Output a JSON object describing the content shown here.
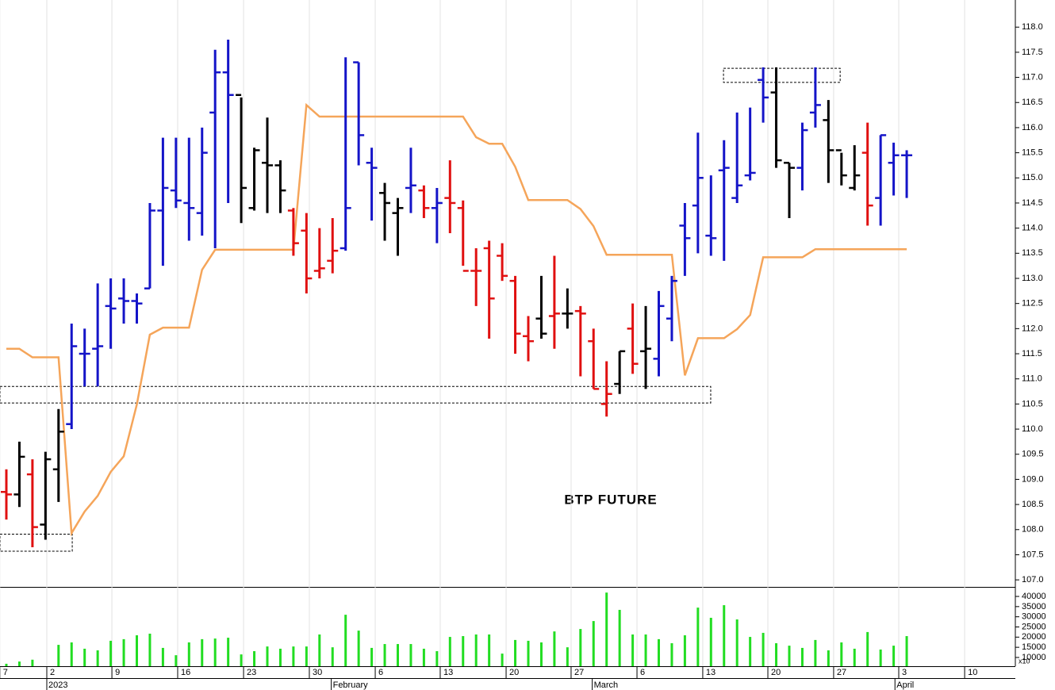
{
  "chart_data": [
    {
      "type": "ohlc",
      "title": "BTP FUTURE",
      "x": [
        0,
        1,
        2,
        3,
        4,
        5,
        6,
        7,
        8,
        9,
        10,
        11,
        12,
        13,
        14,
        15,
        16,
        17,
        18,
        19,
        20,
        21,
        22,
        23,
        24,
        25,
        26,
        27,
        28,
        29,
        30,
        31,
        32,
        33,
        34,
        35,
        36,
        37,
        38,
        39,
        40,
        41,
        42,
        43,
        44,
        45,
        46,
        47,
        48,
        49,
        50,
        51,
        52,
        53,
        54,
        55,
        56,
        57,
        58,
        59,
        60,
        61,
        62,
        63,
        64,
        65,
        66,
        67,
        68,
        69
      ],
      "open": [
        108.75,
        108.7,
        109.1,
        108.1,
        109.2,
        110.1,
        111.5,
        111.6,
        112.45,
        112.6,
        112.55,
        112.8,
        114.35,
        114.75,
        114.5,
        114.3,
        116.3,
        117.1,
        116.65,
        114.4,
        115.3,
        115.25,
        114.35,
        113.95,
        113.15,
        113.35,
        113.6,
        117.3,
        115.3,
        114.7,
        114.3,
        114.8,
        114.75,
        114.4,
        114.6,
        114.4,
        113.15,
        113.6,
        113.45,
        112.95,
        111.85,
        112.2,
        112.25,
        112.3,
        112.35,
        111.75,
        110.5,
        110.9,
        112.0,
        111.55,
        111.4,
        112.2,
        114.05,
        114.45,
        113.85,
        115.15,
        114.6,
        115.05,
        116.95,
        116.7,
        115.3,
        115.2,
        116.3,
        116.15,
        115.55,
        114.8,
        115.5,
        114.6,
        115.3,
        115.45
      ],
      "high": [
        109.2,
        109.75,
        109.4,
        109.55,
        110.4,
        112.1,
        112.0,
        112.9,
        113.0,
        113.0,
        112.7,
        114.5,
        115.8,
        115.8,
        115.8,
        116.0,
        117.55,
        117.75,
        116.6,
        115.6,
        116.2,
        115.35,
        114.4,
        114.3,
        114.0,
        114.2,
        117.4,
        117.3,
        115.6,
        114.9,
        114.6,
        115.6,
        114.85,
        114.8,
        115.35,
        114.55,
        113.6,
        113.75,
        113.7,
        113.05,
        112.25,
        113.05,
        113.45,
        112.8,
        112.45,
        112.0,
        111.35,
        111.55,
        112.5,
        112.45,
        112.75,
        113.05,
        114.5,
        115.9,
        115.05,
        115.75,
        116.3,
        116.4,
        117.2,
        117.2,
        115.3,
        116.1,
        117.2,
        116.55,
        115.5,
        115.65,
        116.1,
        115.85,
        115.7,
        115.55
      ],
      "low": [
        108.2,
        108.45,
        107.65,
        107.8,
        108.55,
        110.0,
        110.85,
        110.85,
        111.6,
        112.1,
        112.1,
        112.8,
        113.25,
        114.4,
        113.75,
        113.85,
        113.6,
        114.5,
        114.1,
        114.35,
        114.3,
        114.3,
        113.45,
        112.7,
        113.0,
        113.1,
        113.55,
        115.25,
        114.15,
        113.75,
        113.45,
        114.3,
        114.2,
        113.7,
        113.9,
        113.25,
        112.45,
        111.8,
        112.95,
        111.5,
        111.35,
        111.8,
        111.6,
        112.0,
        111.05,
        110.8,
        110.25,
        110.7,
        111.1,
        110.8,
        111.05,
        111.75,
        113.05,
        113.5,
        113.45,
        113.35,
        114.5,
        114.95,
        116.1,
        115.2,
        114.2,
        114.75,
        116.0,
        114.9,
        114.85,
        114.75,
        114.05,
        114.05,
        114.65,
        114.6
      ],
      "close": [
        108.7,
        109.45,
        108.05,
        109.4,
        109.95,
        111.65,
        111.5,
        111.65,
        112.4,
        112.55,
        112.5,
        114.35,
        114.8,
        114.55,
        114.4,
        115.5,
        117.1,
        116.65,
        114.8,
        115.55,
        115.25,
        114.75,
        113.7,
        113.0,
        113.2,
        113.55,
        114.4,
        115.85,
        115.2,
        114.5,
        114.4,
        114.85,
        114.4,
        114.5,
        114.5,
        113.15,
        113.15,
        112.6,
        113.05,
        111.9,
        111.75,
        111.9,
        112.3,
        112.3,
        112.3,
        110.8,
        110.7,
        111.55,
        111.3,
        111.6,
        112.45,
        112.95,
        113.8,
        115.0,
        113.8,
        115.2,
        114.85,
        115.1,
        116.6,
        115.35,
        115.2,
        115.95,
        116.45,
        115.55,
        115.05,
        115.05,
        114.45,
        115.85,
        115.45,
        115.45
      ],
      "colors": [
        "#e01010",
        "#000000",
        "#e01010",
        "#000000",
        "#000000",
        "#1414c8",
        "#1414c8",
        "#1414c8",
        "#1414c8",
        "#1414c8",
        "#1414c8",
        "#1414c8",
        "#1414c8",
        "#1414c8",
        "#1414c8",
        "#1414c8",
        "#1414c8",
        "#1414c8",
        "#000000",
        "#000000",
        "#000000",
        "#000000",
        "#e01010",
        "#e01010",
        "#e01010",
        "#e01010",
        "#1414c8",
        "#1414c8",
        "#1414c8",
        "#000000",
        "#000000",
        "#1414c8",
        "#e01010",
        "#1414c8",
        "#e01010",
        "#e01010",
        "#e01010",
        "#e01010",
        "#e01010",
        "#e01010",
        "#e01010",
        "#000000",
        "#e01010",
        "#000000",
        "#e01010",
        "#e01010",
        "#e01010",
        "#000000",
        "#e01010",
        "#000000",
        "#1414c8",
        "#1414c8",
        "#1414c8",
        "#1414c8",
        "#1414c8",
        "#1414c8",
        "#1414c8",
        "#1414c8",
        "#1414c8",
        "#000000",
        "#000000",
        "#1414c8",
        "#1414c8",
        "#000000",
        "#000000",
        "#000000",
        "#e01010",
        "#1414c8",
        "#1414c8",
        "#1414c8"
      ],
      "line": {
        "color": "#f5a55a",
        "values": [
          111.6,
          111.6,
          111.43,
          111.43,
          111.43,
          107.93,
          108.36,
          108.67,
          109.15,
          109.46,
          110.49,
          111.88,
          112.02,
          112.02,
          112.02,
          113.17,
          113.57,
          113.57,
          113.57,
          113.57,
          113.57,
          113.57,
          113.57,
          116.45,
          116.22,
          116.22,
          116.22,
          116.22,
          116.22,
          116.22,
          116.22,
          116.22,
          116.22,
          116.22,
          116.22,
          116.22,
          115.81,
          115.68,
          115.68,
          115.22,
          114.56,
          114.56,
          114.56,
          114.56,
          114.38,
          114.04,
          113.47,
          113.47,
          113.47,
          113.47,
          113.47,
          113.47,
          111.07,
          111.81,
          111.81,
          111.81,
          111.99,
          112.27,
          113.42,
          113.42,
          113.42,
          113.42,
          113.58,
          113.58,
          113.58,
          113.58,
          113.58,
          113.58,
          113.58,
          113.58
        ]
      },
      "zones": [
        {
          "xlim": [
            -0.49,
            53.98
          ],
          "ylim": [
            110.52,
            110.85
          ]
        },
        {
          "xlim": [
            -0.49,
            5.05
          ],
          "ylim": [
            107.57,
            107.91
          ]
        },
        {
          "xlim": [
            54.96,
            63.9
          ],
          "ylim": [
            116.9,
            117.18
          ]
        }
      ],
      "xlim": [
        -0.486,
        77.325
      ],
      "ylim": [
        106.86,
        118.54
      ],
      "yticks": [
        {
          "value": 107.0,
          "label": "107.0"
        },
        {
          "value": 107.5,
          "label": "107.5"
        },
        {
          "value": 108.0,
          "label": "108.0"
        },
        {
          "value": 108.5,
          "label": "108.5"
        },
        {
          "value": 109.0,
          "label": "109.0"
        },
        {
          "value": 109.5,
          "label": "109.5"
        },
        {
          "value": 110.0,
          "label": "110.0"
        },
        {
          "value": 110.5,
          "label": "110.5"
        },
        {
          "value": 111.0,
          "label": "111.0"
        },
        {
          "value": 111.5,
          "label": "111.5"
        },
        {
          "value": 112.0,
          "label": "112.0"
        },
        {
          "value": 112.5,
          "label": "112.5"
        },
        {
          "value": 113.0,
          "label": "113.0"
        },
        {
          "value": 113.5,
          "label": "113.5"
        },
        {
          "value": 114.0,
          "label": "114.0"
        },
        {
          "value": 114.5,
          "label": "114.5"
        },
        {
          "value": 115.0,
          "label": "115.0"
        },
        {
          "value": 115.5,
          "label": "115.5"
        },
        {
          "value": 116.0,
          "label": "116.0"
        },
        {
          "value": 116.5,
          "label": "116.5"
        },
        {
          "value": 117.0,
          "label": "117.0"
        },
        {
          "value": 117.5,
          "label": "117.5"
        },
        {
          "value": 118.0,
          "label": "118.0"
        }
      ],
      "xticks": [
        {
          "value": -0.5,
          "label": "7"
        },
        {
          "value": 3.1,
          "label": "2"
        },
        {
          "value": 8.09,
          "label": "9"
        },
        {
          "value": 13.13,
          "label": "16"
        },
        {
          "value": 18.18,
          "label": "23"
        },
        {
          "value": 23.22,
          "label": "30"
        },
        {
          "value": 28.27,
          "label": "6"
        },
        {
          "value": 33.25,
          "label": "13"
        },
        {
          "value": 38.3,
          "label": "20"
        },
        {
          "value": 43.28,
          "label": "27"
        },
        {
          "value": 48.33,
          "label": "6"
        },
        {
          "value": 53.37,
          "label": "13"
        },
        {
          "value": 58.36,
          "label": "20"
        },
        {
          "value": 63.4,
          "label": "27"
        },
        {
          "value": 68.39,
          "label": "3"
        },
        {
          "value": 73.44,
          "label": "10"
        }
      ],
      "month_ticks": [
        {
          "value": 3.1,
          "label": "2023"
        },
        {
          "value": 24.9,
          "label": "February"
        },
        {
          "value": 44.9,
          "label": "March"
        },
        {
          "value": 68.1,
          "label": "April"
        }
      ],
      "grid": true
    },
    {
      "type": "bar",
      "color": "#22dd22",
      "unit_note": "x10",
      "values": [
        6900,
        8000,
        8900,
        null,
        16200,
        17400,
        14300,
        13500,
        18200,
        19000,
        20900,
        21700,
        14700,
        11100,
        17400,
        19000,
        19300,
        19700,
        11500,
        13100,
        15400,
        14300,
        15400,
        15400,
        21300,
        15000,
        31000,
        23200,
        14700,
        16600,
        16600,
        16600,
        14300,
        13100,
        20100,
        20500,
        21300,
        21300,
        11900,
        18600,
        18200,
        17400,
        22800,
        15000,
        24000,
        27900,
        41900,
        33400,
        21300,
        21300,
        19000,
        17000,
        20900,
        34500,
        29500,
        35700,
        28700,
        20100,
        22100,
        17000,
        15800,
        14700,
        18600,
        13500,
        17400,
        14300,
        22500,
        13900,
        15800,
        20500
      ],
      "ylim": [
        5700,
        44300
      ],
      "yticks": [
        10000,
        15000,
        20000,
        25000,
        30000,
        35000,
        40000
      ]
    }
  ]
}
